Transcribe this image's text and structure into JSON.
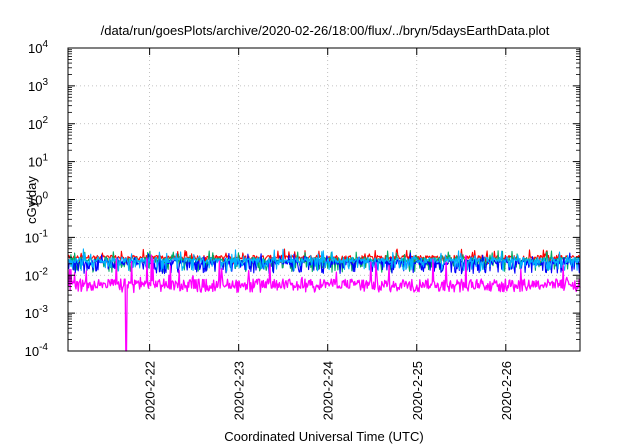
{
  "chart_data": {
    "type": "line",
    "title": "/data/run/goesPlots/archive/2020-02-26/18:00/flux/../bryn/5daysEarthData.plot",
    "xlabel": "Coordinated Universal Time (UTC)",
    "ylabel": "cGy/day",
    "y_scale": "log",
    "ylim": [
      0.0001,
      10000
    ],
    "y_ticks": [
      {
        "exp": "-4",
        "value": 0.0001
      },
      {
        "exp": "-3",
        "value": 0.001
      },
      {
        "exp": "-2",
        "value": 0.01
      },
      {
        "exp": "-1",
        "value": 0.1
      },
      {
        "exp": "0",
        "value": 1
      },
      {
        "exp": "1",
        "value": 10
      },
      {
        "exp": "2",
        "value": 100
      },
      {
        "exp": "3",
        "value": 1000
      },
      {
        "exp": "4",
        "value": 10000
      }
    ],
    "y_tick_base": "10",
    "xlim": [
      "2020-02-21T02:00",
      "2020-02-26T20:00"
    ],
    "x_ticks": [
      "2020-2-22",
      "2020-2-23",
      "2020-2-24",
      "2020-2-25",
      "2020-2-26"
    ],
    "x_tick_dates": [
      "2020-02-22",
      "2020-02-23",
      "2020-02-24",
      "2020-02-25",
      "2020-02-26"
    ],
    "grid": true,
    "series": [
      {
        "color": "#ff0000",
        "typical": 0.03,
        "low": 0.02,
        "high": 0.05
      },
      {
        "color": "#00aa66",
        "typical": 0.025,
        "low": 0.012,
        "high": 0.045
      },
      {
        "color": "#0000ff",
        "typical": 0.022,
        "low": 0.011,
        "high": 0.04
      },
      {
        "color": "#00b0ff",
        "typical": 0.025,
        "low": 0.013,
        "high": 0.05
      },
      {
        "color": "#ff00ff",
        "typical": 0.006,
        "low": 0.0035,
        "high": 0.035,
        "dropout": {
          "x": "2020-02-21T17:40",
          "min": 0.0001
        }
      }
    ]
  }
}
